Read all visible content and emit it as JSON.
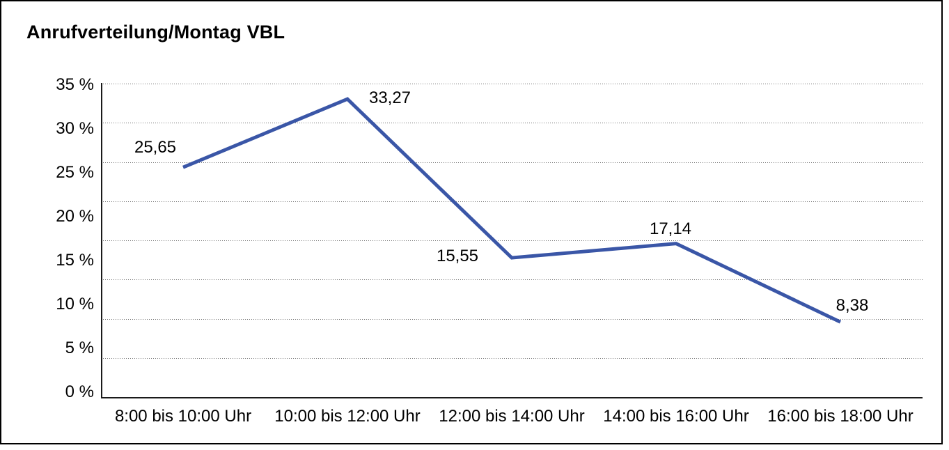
{
  "chart": {
    "title": "Anrufverteilung/Montag VBL"
  },
  "chart_data": {
    "type": "line",
    "title": "Anrufverteilung/Montag VBL",
    "categories": [
      "8:00 bis 10:00 Uhr",
      "10:00 bis 12:00 Uhr",
      "12:00 bis 14:00 Uhr",
      "14:00 bis 16:00 Uhr",
      "16:00 bis 18:00 Uhr"
    ],
    "values": [
      25.65,
      33.27,
      15.55,
      17.14,
      8.38
    ],
    "value_labels": [
      "25,65",
      "33,27",
      "15,55",
      "17,14",
      "8,38"
    ],
    "xlabel": "",
    "ylabel": "",
    "ylim": [
      0,
      35
    ],
    "y_tick_values": [
      35,
      30,
      25,
      20,
      15,
      10,
      5,
      0
    ],
    "y_tick_labels": [
      "35 %",
      "30 %",
      "25 %",
      "20 %",
      "15 %",
      "10 %",
      "5 %",
      "0 %"
    ],
    "grid": {
      "style": "dotted",
      "horizontal_divisions": 8,
      "vertical": false
    },
    "legend": "none",
    "colors": {
      "line": "#3a56a7",
      "grid_dots": "#6e6e6e",
      "axis": "#1a1a1a",
      "text": "#000000",
      "background": "#ffffff",
      "frame_border": "#000000"
    }
  }
}
